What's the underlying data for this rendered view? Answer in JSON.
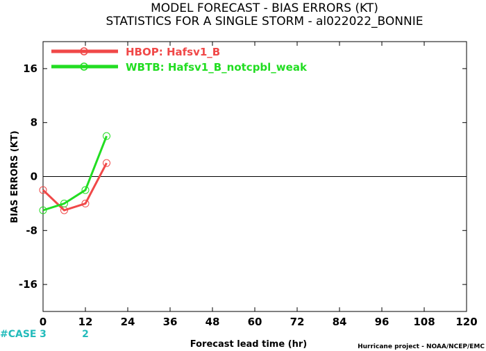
{
  "chart_data": {
    "type": "line",
    "title": "MODEL FORECAST - BIAS ERRORS (KT)",
    "subtitle": "STATISTICS FOR A SINGLE STORM - al022022_BONNIE",
    "xlabel": "Forecast lead time (hr)",
    "ylabel": "BIAS ERRORS (KT)",
    "xlim": [
      0,
      120
    ],
    "ylim": [
      -20,
      20
    ],
    "xticks": [
      0,
      12,
      24,
      36,
      48,
      60,
      72,
      84,
      96,
      108,
      120
    ],
    "yticks": [
      -16,
      -8,
      0,
      8,
      16
    ],
    "grid": false,
    "zero_line": true,
    "legend_position": "top-left",
    "series": [
      {
        "name": "HBOP: Hafsv1_B",
        "color": "#f04848",
        "x": [
          0,
          6,
          12,
          18
        ],
        "y": [
          -2,
          -5,
          -4,
          2
        ]
      },
      {
        "name": "WBTB: Hafsv1_B_notcpbl_weak",
        "color": "#22dd22",
        "x": [
          0,
          6,
          12,
          18
        ],
        "y": [
          -5,
          -4,
          -2,
          6
        ]
      }
    ],
    "case_counts": {
      "label": "#CASE",
      "color": "#22bbbb",
      "entries": [
        {
          "x": 0,
          "count": "3"
        },
        {
          "x": 12,
          "count": "2"
        }
      ]
    },
    "credit": "Hurricane project - NOAA/NCEP/EMC"
  }
}
